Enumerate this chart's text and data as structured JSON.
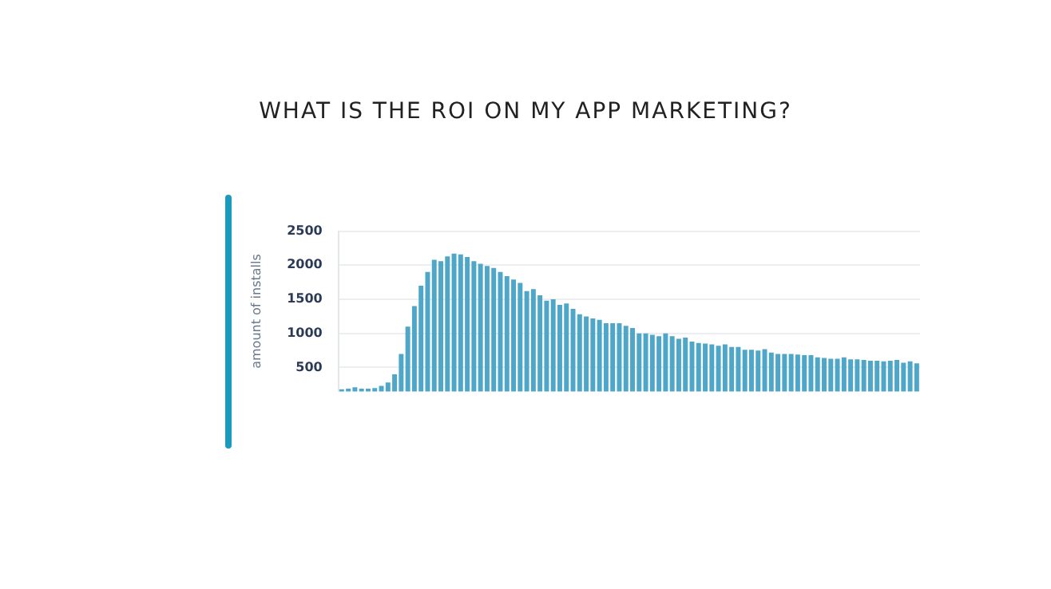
{
  "chart_data": {
    "type": "bar",
    "title": "WHAT IS THE ROI ON MY APP MARKETING?",
    "ylabel": "amount of installs",
    "categories": [
      null,
      null,
      null,
      null,
      null,
      null,
      null,
      null,
      null,
      null,
      null,
      null,
      null,
      null,
      null,
      null,
      null,
      null,
      null,
      null,
      null,
      null,
      null,
      null,
      null,
      null,
      null,
      null,
      null,
      null,
      null,
      null,
      null,
      null,
      null,
      null,
      null,
      null,
      null,
      null,
      null,
      null,
      null,
      null,
      null,
      null,
      null,
      null,
      null,
      null,
      null,
      null,
      null,
      null,
      null,
      null,
      null,
      null,
      null,
      null,
      null,
      null,
      null,
      null,
      null,
      null,
      null,
      null,
      null,
      null,
      null,
      null,
      null,
      null,
      null,
      null,
      null,
      null,
      null,
      null,
      null,
      null,
      null,
      null,
      null,
      null,
      null,
      null
    ],
    "values": [
      180,
      190,
      210,
      190,
      190,
      200,
      230,
      280,
      400,
      700,
      1100,
      1400,
      1700,
      1900,
      2080,
      2060,
      2130,
      2170,
      2160,
      2120,
      2060,
      2020,
      1990,
      1960,
      1900,
      1840,
      1790,
      1740,
      1620,
      1650,
      1560,
      1480,
      1500,
      1420,
      1440,
      1360,
      1280,
      1250,
      1220,
      1200,
      1150,
      1150,
      1150,
      1110,
      1080,
      1000,
      1000,
      980,
      960,
      1000,
      960,
      920,
      940,
      880,
      860,
      850,
      840,
      820,
      840,
      800,
      800,
      760,
      760,
      750,
      770,
      720,
      700,
      700,
      700,
      690,
      680,
      680,
      650,
      640,
      630,
      630,
      650,
      620,
      620,
      610,
      600,
      600,
      590,
      600,
      610,
      570,
      590,
      560
    ],
    "color": "#4ea7c9",
    "ylim": [
      150,
      2500
    ],
    "yticks": [
      500,
      1000,
      1500,
      2000,
      2500
    ],
    "grid": "y",
    "tick_labels": "y",
    "legend": false
  }
}
